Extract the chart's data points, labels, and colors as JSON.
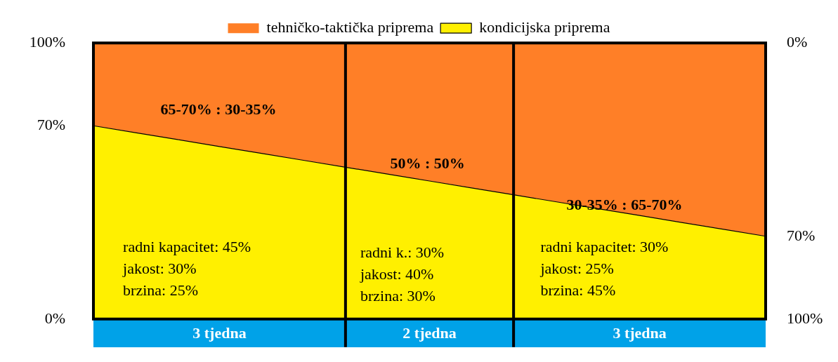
{
  "chart_data": {
    "type": "area",
    "stacked": true,
    "legend": "top",
    "categories": [
      null,
      null,
      null,
      "3 tjedna",
      null,
      null,
      null,
      null,
      "2 tjedna",
      null,
      null,
      null,
      null,
      "3 tjedna",
      null,
      null,
      null
    ],
    "ylim": [
      0,
      100
    ],
    "yticks": [
      {
        "value": 0,
        "label": "0%"
      },
      {
        "value": 70,
        "label": "70%"
      },
      {
        "value": 100,
        "label": "100%"
      }
    ],
    "y2lim": [
      100,
      0
    ],
    "y2ticks": [
      {
        "value": 0,
        "label": "0%"
      },
      {
        "value": 70,
        "label": "70%"
      },
      {
        "value": 100,
        "label": "100%"
      }
    ],
    "series": [
      {
        "name": "kondicijska priprema",
        "color": "#fff000",
        "values": [
          70,
          67.5,
          65,
          62.5,
          60,
          57.5,
          55,
          52.5,
          50,
          47.5,
          45,
          42.5,
          40,
          37.5,
          35,
          32.5,
          30
        ]
      },
      {
        "name": "tehničko-taktička priprema",
        "color": "#ff7f27",
        "values": [
          30,
          32.5,
          35,
          37.5,
          40,
          42.5,
          45,
          47.5,
          50,
          52.5,
          55,
          57.5,
          60,
          62.5,
          65,
          67.5,
          70
        ]
      }
    ],
    "annotations": [
      "65-70% : 30-35%",
      "50% : 50%",
      "30-35% : 65-70%",
      "radni kapacitet: 45%\njakost: 30%\nbrzina: 25%",
      "radni k.: 30%\njakost: 40%\nbrzina: 30%",
      "radni kapacitet: 30%\njakost: 25%\nbrzina: 45%"
    ]
  }
}
